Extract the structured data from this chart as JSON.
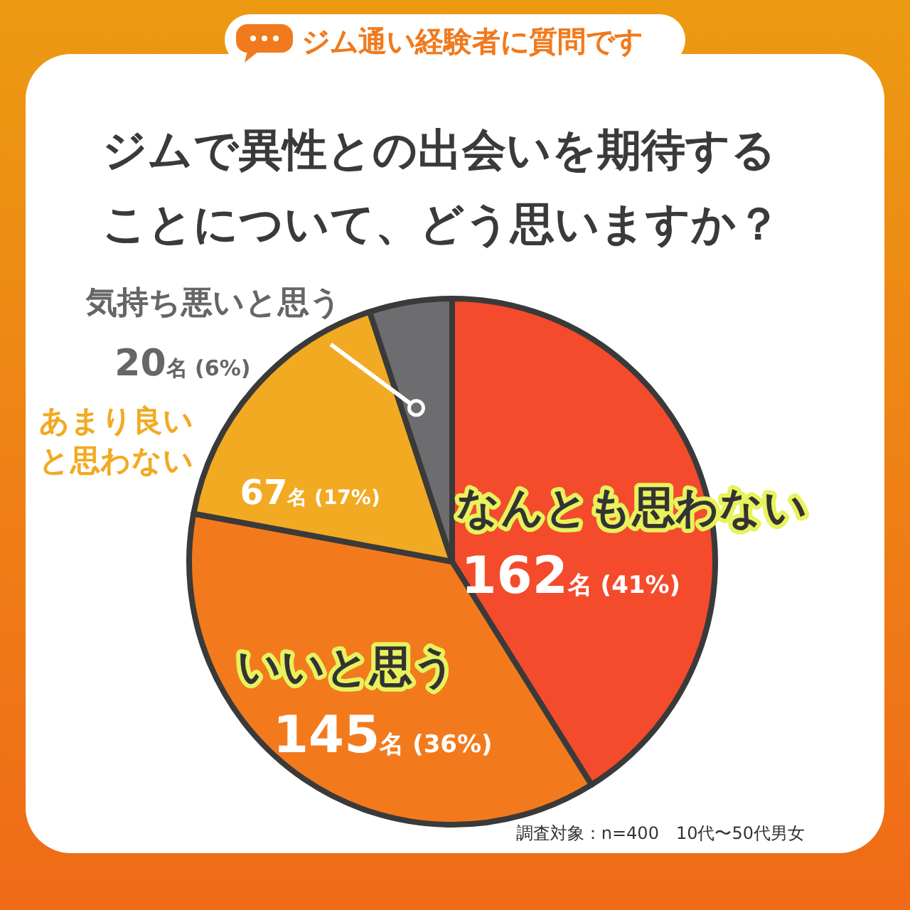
{
  "chart_data": {
    "type": "pie",
    "title": "ジムで異性との出会いを期待することについて、どう思いますか？",
    "subtitle": "ジム通い経験者に質問です",
    "categories": [
      "なんとも思わない",
      "いいと思う",
      "あまり良いと思わない",
      "気持ち悪いと思う"
    ],
    "values": [
      162,
      145,
      67,
      20
    ],
    "colors": [
      "#f44b2c",
      "#f27a1d",
      "#f2aa22",
      "#6d6d70"
    ],
    "value_labels": [
      "162名 (41%)",
      "145名 (36%)",
      "67名 (17%)",
      "20名 (6%)"
    ],
    "annotations": [
      "調査対象：n=400　10代〜50代男女"
    ]
  }
}
